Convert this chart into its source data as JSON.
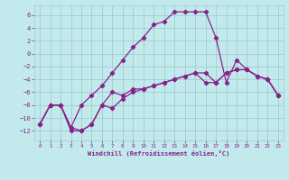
{
  "title": "",
  "xlabel": "Windchill (Refroidissement éolien,°C)",
  "ylabel": "",
  "bg_color": "#c2eaed",
  "grid_color": "#a0cdd0",
  "line_color": "#882288",
  "xlim": [
    -0.5,
    23.5
  ],
  "ylim": [
    -13.5,
    7.5
  ],
  "yticks": [
    -12,
    -10,
    -8,
    -6,
    -4,
    -2,
    0,
    2,
    4,
    6
  ],
  "xticks": [
    0,
    1,
    2,
    3,
    4,
    5,
    6,
    7,
    8,
    9,
    10,
    11,
    12,
    13,
    14,
    15,
    16,
    17,
    18,
    19,
    20,
    21,
    22,
    23
  ],
  "line1_x": [
    0,
    1,
    2,
    3,
    4,
    5,
    6,
    7,
    8,
    9,
    10,
    11,
    12,
    13,
    14,
    15,
    16,
    17,
    18,
    19,
    20,
    21,
    22,
    23
  ],
  "line1_y": [
    -11,
    -8,
    -8,
    -12,
    -12,
    -11,
    -8,
    -6,
    -6.5,
    -5.5,
    -5.5,
    -5,
    -4.5,
    -4,
    -3.5,
    -3,
    -3,
    -4.5,
    -3,
    -2.5,
    -2.5,
    -3.5,
    -4,
    -6.5
  ],
  "line2_x": [
    0,
    1,
    2,
    3,
    4,
    5,
    6,
    7,
    8,
    9,
    10,
    11,
    12,
    13,
    14,
    15,
    16,
    17,
    18,
    19,
    20,
    21,
    22,
    23
  ],
  "line2_y": [
    -11,
    -8,
    -8,
    -11.5,
    -8,
    -6.5,
    -5,
    -3,
    -1,
    1,
    2.5,
    4.5,
    5,
    6.5,
    6.5,
    6.5,
    6.5,
    2.5,
    -4.5,
    -1,
    -2.5,
    -3.5,
    -4,
    -6.5
  ],
  "line3_x": [
    0,
    1,
    2,
    3,
    4,
    5,
    6,
    7,
    8,
    9,
    10,
    11,
    12,
    13,
    14,
    15,
    16,
    17,
    18,
    19,
    20,
    21,
    22,
    23
  ],
  "line3_y": [
    -11,
    -8,
    -8,
    -11.5,
    -12,
    -11,
    -8,
    -8.5,
    -7,
    -6,
    -5.5,
    -5,
    -4.5,
    -4,
    -3.5,
    -3,
    -4.5,
    -4.5,
    -3,
    -2.5,
    -2.5,
    -3.5,
    -4,
    -6.5
  ]
}
